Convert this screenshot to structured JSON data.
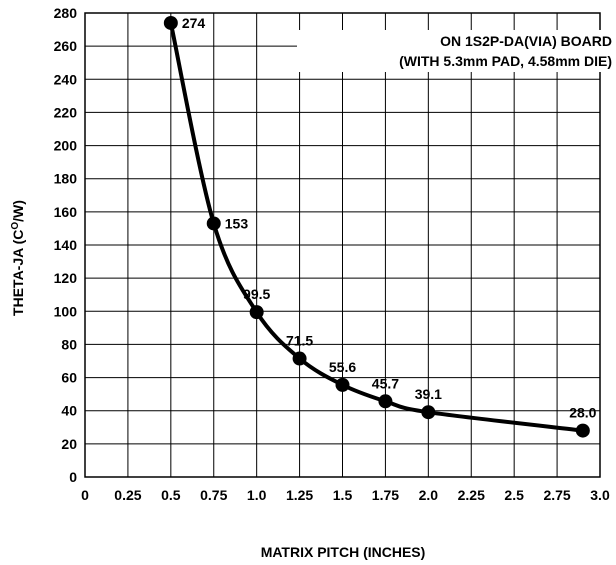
{
  "chart_data": {
    "type": "line",
    "xlabel": "MATRIX PITCH (INCHES)",
    "ylabel_main": "THETA-JA (C",
    "ylabel_sup": "O",
    "ylabel_tail": "/W)",
    "annotation": {
      "line1": "ON 1S2P-DA(VIA) BOARD",
      "line2": "(WITH 5.3mm PAD, 4.58mm DIE)"
    },
    "xlim": [
      0,
      3.0
    ],
    "ylim": [
      0,
      280
    ],
    "x_ticks": [
      "0",
      "0.25",
      "0.5",
      "0.75",
      "1.0",
      "1.25",
      "1.5",
      "1.75",
      "2.0",
      "2.25",
      "2.5",
      "2.75",
      "3.0"
    ],
    "y_ticks": [
      "0",
      "20",
      "40",
      "60",
      "80",
      "100",
      "120",
      "140",
      "160",
      "180",
      "200",
      "220",
      "240",
      "260",
      "280"
    ],
    "grid": true,
    "series": [
      {
        "x": [
          0.5,
          0.75,
          1.0,
          1.25,
          1.5,
          1.75,
          2.0,
          2.9
        ],
        "y": [
          274,
          153,
          99.5,
          71.5,
          55.6,
          45.7,
          39.1,
          28.0
        ],
        "labels": [
          "274",
          "153",
          "99.5",
          "71.5",
          "55.6",
          "45.7",
          "39.1",
          "28.0"
        ]
      }
    ]
  }
}
